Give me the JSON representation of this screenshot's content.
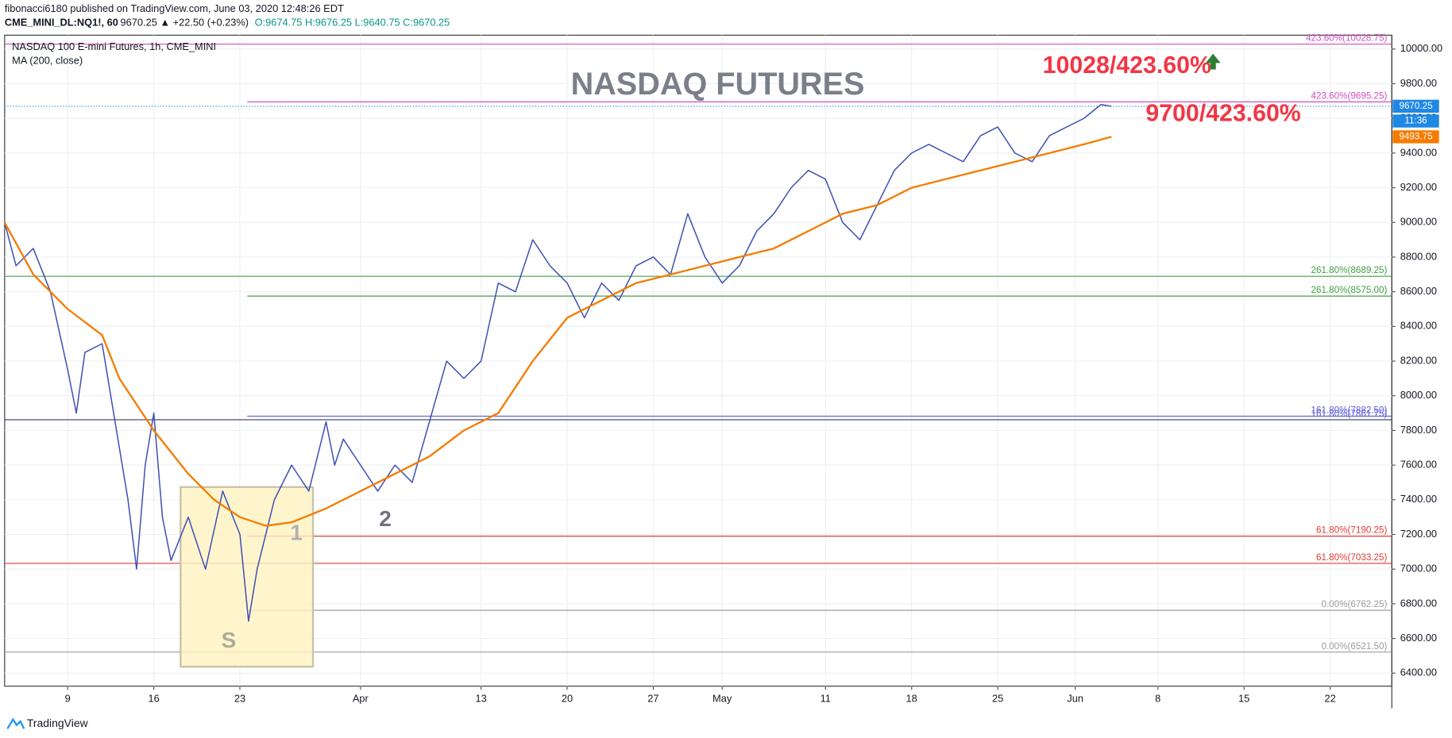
{
  "header": {
    "publisher": "fibonacci6180 published on TradingView.com, June 03, 2020 12:48:26 EDT",
    "symbol": "CME_MINI_DL:NQ1!, 60",
    "quote": "9670.25 ▲ +22.50 (+0.23%)",
    "ohlc": "O:9674.75 H:9676.25 L:9640.75 C:9670.25"
  },
  "chart_data": {
    "type": "line",
    "title": "NASDAQ FUTURES",
    "instrument": "NASDAQ 100 E-mini Futures, 1h, CME_MINI",
    "indicator": "MA (200, close)",
    "xlim": [
      -3.66,
      76.88
    ],
    "ylim": [
      6325,
      10080
    ],
    "xticks": [
      {
        "value": 0,
        "label": "9"
      },
      {
        "value": 5,
        "label": "16"
      },
      {
        "value": 10,
        "label": "23"
      },
      {
        "value": 17,
        "label": "Apr"
      },
      {
        "value": 24,
        "label": "13"
      },
      {
        "value": 29,
        "label": "20"
      },
      {
        "value": 34,
        "label": "27"
      },
      {
        "value": 38,
        "label": "May"
      },
      {
        "value": 44,
        "label": "11"
      },
      {
        "value": 49,
        "label": "18"
      },
      {
        "value": 54,
        "label": "25"
      },
      {
        "value": 58.5,
        "label": "Jun"
      },
      {
        "value": 63.3,
        "label": "8"
      },
      {
        "value": 68.3,
        "label": "15"
      },
      {
        "value": 73.3,
        "label": "22"
      }
    ],
    "yticks": [
      {
        "value": 6400,
        "label": "6400.00"
      },
      {
        "value": 6600,
        "label": "6600.00"
      },
      {
        "value": 6800,
        "label": "6800.00"
      },
      {
        "value": 7000,
        "label": "7000.00"
      },
      {
        "value": 7200,
        "label": "7200.00"
      },
      {
        "value": 7400,
        "label": "7400.00"
      },
      {
        "value": 7600,
        "label": "7600.00"
      },
      {
        "value": 7800,
        "label": "7800.00"
      },
      {
        "value": 8000,
        "label": "8000.00"
      },
      {
        "value": 8200,
        "label": "8200.00"
      },
      {
        "value": 8400,
        "label": "8400.00"
      },
      {
        "value": 8600,
        "label": "8600.00"
      },
      {
        "value": 8800,
        "label": "8800.00"
      },
      {
        "value": 9000,
        "label": "9000.00"
      },
      {
        "value": 9200,
        "label": "9200.00"
      },
      {
        "value": 9400,
        "label": "9400.00"
      },
      {
        "value": 9600,
        "label": "9600.00"
      },
      {
        "value": 9800,
        "label": "9800.00"
      },
      {
        "value": 10000,
        "label": "10000.00"
      }
    ],
    "grid": true,
    "series": [
      {
        "name": "NQ1!",
        "color": "#3f51b5",
        "x": [
          -3.66,
          -3,
          -2,
          -1,
          0,
          0.5,
          1,
          2,
          2.5,
          3,
          3.5,
          4,
          4.5,
          5,
          5.5,
          6,
          7,
          8,
          9,
          10,
          10.5,
          11,
          12,
          13,
          14,
          15,
          15.5,
          16,
          17,
          18,
          19,
          20,
          21,
          22,
          23,
          24,
          25,
          26,
          27,
          28,
          29,
          30,
          31,
          32,
          33,
          34,
          35,
          36,
          37,
          38,
          39,
          40,
          41,
          42,
          43,
          44,
          45,
          46,
          47,
          48,
          49,
          50,
          51,
          52,
          53,
          54,
          55,
          56,
          57,
          58,
          59,
          60,
          60.6
        ],
        "values": [
          9000,
          8750,
          8850,
          8600,
          8150,
          7900,
          8250,
          8300,
          8000,
          7700,
          7400,
          7000,
          7600,
          7900,
          7300,
          7050,
          7300,
          7000,
          7450,
          7200,
          6700,
          7000,
          7400,
          7600,
          7450,
          7850,
          7600,
          7750,
          7600,
          7450,
          7600,
          7500,
          7850,
          8200,
          8100,
          8200,
          8650,
          8600,
          8900,
          8750,
          8650,
          8450,
          8650,
          8550,
          8750,
          8800,
          8700,
          9050,
          8800,
          8650,
          8750,
          8950,
          9050,
          9200,
          9300,
          9250,
          9000,
          8900,
          9100,
          9300,
          9400,
          9450,
          9400,
          9350,
          9500,
          9550,
          9400,
          9350,
          9500,
          9550,
          9600,
          9680,
          9670
        ]
      },
      {
        "name": "MA (200, close)",
        "color": "#f57c00",
        "x": [
          -3.66,
          -2,
          0,
          2,
          3,
          5,
          7,
          8.5,
          10,
          11.5,
          13,
          15,
          17,
          19,
          21,
          23,
          25,
          27,
          29,
          31,
          33,
          35,
          37,
          39,
          41,
          43,
          45,
          47,
          49,
          51,
          53,
          55,
          57,
          59,
          60.6
        ],
        "values": [
          9000,
          8700,
          8500,
          8350,
          8100,
          7800,
          7550,
          7400,
          7300,
          7250,
          7270,
          7350,
          7450,
          7550,
          7650,
          7800,
          7900,
          8200,
          8450,
          8550,
          8650,
          8700,
          8750,
          8800,
          8850,
          8950,
          9050,
          9100,
          9200,
          9250,
          9300,
          9350,
          9400,
          9450,
          9494
        ]
      }
    ],
    "levels": [
      {
        "label": "423.60%(10028.75)",
        "value": 10028.75,
        "color": "#d04fc0"
      },
      {
        "label": "423.60%(9695.25)",
        "value": 9695.25,
        "color": "#d04fc0"
      },
      {
        "label": "261.80%(8689.25)",
        "value": 8689.25,
        "color": "#43a047"
      },
      {
        "label": "261.80%(8575.00)",
        "value": 8575,
        "color": "#43a047"
      },
      {
        "label": "161.80%(7882.50)",
        "value": 7882.5,
        "color": "#5c5cd6"
      },
      {
        "label": "161.80%(7861.75)",
        "value": 7861.75,
        "color": "#5c5cd6"
      },
      {
        "label": "61.80%(7190.25)",
        "value": 7190.25,
        "color": "#e53935"
      },
      {
        "label": "61.80%(7033.25)",
        "value": 7033.25,
        "color": "#e53935"
      },
      {
        "label": "0.00%(6762.25)",
        "value": 6762.25,
        "color": "#9e9e9e"
      },
      {
        "label": "0.00%(6521.50)",
        "value": 6521.5,
        "color": "#9e9e9e"
      }
    ],
    "price_labels": [
      {
        "value": 9670.25,
        "label": "9670.25",
        "color": "#1e88e5"
      },
      {
        "value": 9493.75,
        "label": "9493.75",
        "color": "#f57c00"
      }
    ],
    "countdown": "11:36",
    "annotations": [
      "10028/423.60%",
      "9700/423.60%",
      "1",
      "2",
      "S"
    ]
  },
  "footer": {
    "brand": "TradingView"
  }
}
